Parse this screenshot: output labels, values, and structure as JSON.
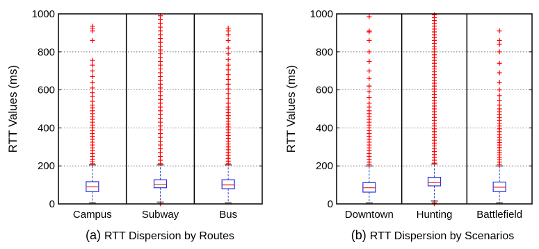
{
  "chart_data": [
    {
      "type": "boxplot",
      "caption_prefix": "(a)",
      "caption": "RTT Dispersion by Routes",
      "ylabel": "RTT Values (ms)",
      "xlabel": "",
      "ylim": [
        0,
        1000
      ],
      "yticks": [
        0,
        200,
        400,
        600,
        800,
        1000
      ],
      "grid": "horizontal dotted",
      "categories": [
        "Campus",
        "Subway",
        "Bus"
      ],
      "boxes": [
        {
          "name": "Campus",
          "q1": 65,
          "median": 90,
          "q3": 117,
          "whisker_low": 5,
          "whisker_high": 205
        },
        {
          "name": "Subway",
          "q1": 85,
          "median": 102,
          "q3": 127,
          "whisker_low": 10,
          "whisker_high": 205
        },
        {
          "name": "Bus",
          "q1": 80,
          "median": 100,
          "q3": 127,
          "whisker_low": 5,
          "whisker_high": 205
        }
      ],
      "outliers": [
        {
          "category": "Campus",
          "values": [
            212,
            222,
            235,
            250,
            265,
            280,
            295,
            310,
            325,
            340,
            355,
            370,
            385,
            400,
            415,
            430,
            445,
            460,
            475,
            490,
            505,
            520,
            540,
            565,
            585,
            610,
            640,
            670,
            700,
            730,
            755,
            860,
            910,
            925,
            935
          ]
        },
        {
          "category": "Subway",
          "values": [
            1,
            212,
            230,
            250,
            270,
            290,
            310,
            330,
            350,
            370,
            390,
            410,
            430,
            450,
            470,
            490,
            510,
            530,
            550,
            570,
            590,
            610,
            630,
            650,
            670,
            690,
            710,
            730,
            750,
            770,
            790,
            810,
            830,
            850,
            870,
            890,
            910,
            930,
            950,
            970,
            990
          ]
        },
        {
          "category": "Bus",
          "values": [
            212,
            225,
            240,
            255,
            270,
            285,
            300,
            315,
            330,
            345,
            360,
            375,
            390,
            405,
            420,
            435,
            450,
            465,
            480,
            495,
            510,
            530,
            555,
            580,
            605,
            630,
            655,
            680,
            705,
            730,
            760,
            790,
            820,
            860,
            890,
            910,
            925
          ]
        }
      ]
    },
    {
      "type": "boxplot",
      "caption_prefix": "(b)",
      "caption": "RTT Dispersion by Scenarios",
      "ylabel": "RTT Values (ms)",
      "xlabel": "",
      "ylim": [
        0,
        1000
      ],
      "yticks": [
        0,
        200,
        400,
        600,
        800,
        1000
      ],
      "grid": "horizontal dotted",
      "categories": [
        "Downtown",
        "Hunting",
        "Battlefield"
      ],
      "boxes": [
        {
          "name": "Downtown",
          "q1": 62,
          "median": 85,
          "q3": 112,
          "whisker_low": 5,
          "whisker_high": 200
        },
        {
          "name": "Hunting",
          "q1": 95,
          "median": 112,
          "q3": 140,
          "whisker_low": 15,
          "whisker_high": 210
        },
        {
          "name": "Battlefield",
          "q1": 65,
          "median": 88,
          "q3": 115,
          "whisker_low": 5,
          "whisker_high": 200
        }
      ],
      "outliers": [
        {
          "category": "Downtown",
          "values": [
            208,
            220,
            235,
            250,
            265,
            280,
            295,
            310,
            325,
            340,
            355,
            370,
            385,
            400,
            415,
            430,
            445,
            460,
            475,
            490,
            510,
            530,
            560,
            590,
            620,
            660,
            700,
            750,
            800,
            860,
            905,
            910,
            985
          ]
        },
        {
          "category": "Hunting",
          "values": [
            1,
            5,
            215,
            230,
            245,
            260,
            275,
            290,
            305,
            320,
            335,
            350,
            365,
            380,
            395,
            410,
            425,
            440,
            455,
            470,
            485,
            500,
            515,
            530,
            545,
            560,
            575,
            590,
            605,
            620,
            635,
            650,
            665,
            680,
            695,
            710,
            725,
            740,
            755,
            770,
            785,
            800,
            815,
            830,
            845,
            860,
            875,
            890,
            905,
            920,
            935,
            950,
            965,
            980,
            995
          ]
        },
        {
          "category": "Battlefield",
          "values": [
            208,
            220,
            232,
            245,
            258,
            270,
            283,
            296,
            310,
            323,
            336,
            350,
            365,
            380,
            395,
            410,
            425,
            440,
            455,
            470,
            485,
            500,
            520,
            545,
            570,
            600,
            640,
            690,
            740,
            800,
            840,
            860,
            910
          ]
        }
      ]
    }
  ]
}
